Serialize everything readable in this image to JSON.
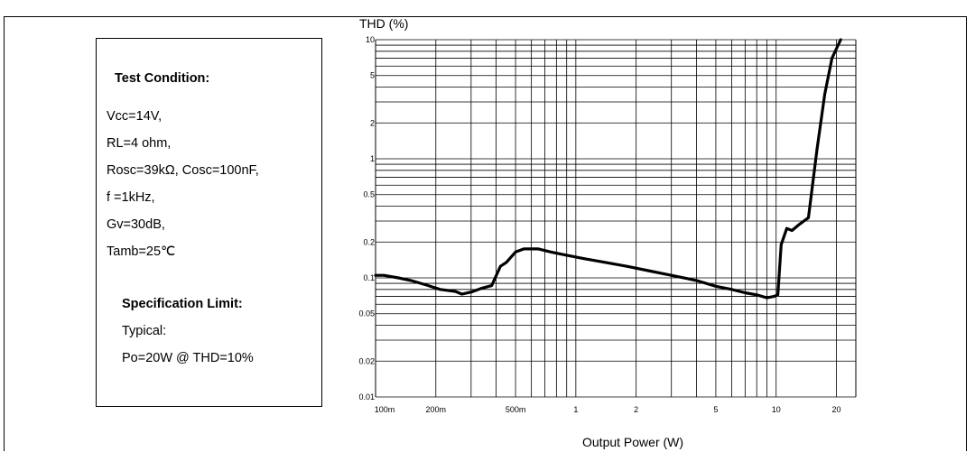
{
  "conditions": {
    "title": "Test Condition:",
    "lines": [
      "Vcc=14V,",
      "RL=4 ohm,",
      "Rosc=39kΩ, Cosc=100nF,",
      "f =1kHz,",
      "Gv=30dB,",
      "Tamb=25℃"
    ]
  },
  "spec": {
    "title": "Specification Limit:",
    "lines": [
      "Typical:",
      "Po=20W @ THD=10%"
    ]
  },
  "chart_data": {
    "type": "line",
    "xlabel": "Output Power (W)",
    "ylabel": "THD (%)",
    "xscale": "log",
    "yscale": "log",
    "xlim": [
      0.1,
      25
    ],
    "ylim": [
      0.01,
      10
    ],
    "grid": true,
    "x_ticks": [
      {
        "v": 0.1,
        "label": "100m"
      },
      {
        "v": 0.2,
        "label": "200m"
      },
      {
        "v": 0.5,
        "label": "500m"
      },
      {
        "v": 1,
        "label": "1"
      },
      {
        "v": 2,
        "label": "2"
      },
      {
        "v": 5,
        "label": "5"
      },
      {
        "v": 10,
        "label": "10"
      },
      {
        "v": 20,
        "label": "20"
      }
    ],
    "y_ticks": [
      {
        "v": 0.01,
        "label": "0.01"
      },
      {
        "v": 0.02,
        "label": "0.02"
      },
      {
        "v": 0.05,
        "label": "0.05"
      },
      {
        "v": 0.1,
        "label": "0.1"
      },
      {
        "v": 0.2,
        "label": "0.2"
      },
      {
        "v": 0.5,
        "label": "0.5"
      },
      {
        "v": 1,
        "label": "1"
      },
      {
        "v": 2,
        "label": "2"
      },
      {
        "v": 5,
        "label": "5"
      },
      {
        "v": 10,
        "label": "10"
      }
    ],
    "series": [
      {
        "color": "#000000",
        "x": [
          0.1,
          0.11,
          0.13,
          0.15,
          0.18,
          0.21,
          0.25,
          0.27,
          0.3,
          0.34,
          0.38,
          0.42,
          0.45,
          0.5,
          0.55,
          0.65,
          0.75,
          0.9,
          1.1,
          1.4,
          1.8,
          2.3,
          3,
          4,
          5,
          6,
          7,
          8,
          9,
          9.8,
          10.2,
          10.6,
          11.3,
          12,
          13,
          14.5,
          16,
          17.5,
          19,
          21
        ],
        "y": [
          0.105,
          0.105,
          0.1,
          0.095,
          0.087,
          0.08,
          0.077,
          0.073,
          0.076,
          0.082,
          0.086,
          0.125,
          0.135,
          0.165,
          0.175,
          0.175,
          0.165,
          0.155,
          0.145,
          0.135,
          0.125,
          0.115,
          0.105,
          0.095,
          0.085,
          0.08,
          0.075,
          0.072,
          0.068,
          0.07,
          0.072,
          0.19,
          0.26,
          0.25,
          0.28,
          0.32,
          1.2,
          3.5,
          7,
          11
        ]
      }
    ]
  }
}
